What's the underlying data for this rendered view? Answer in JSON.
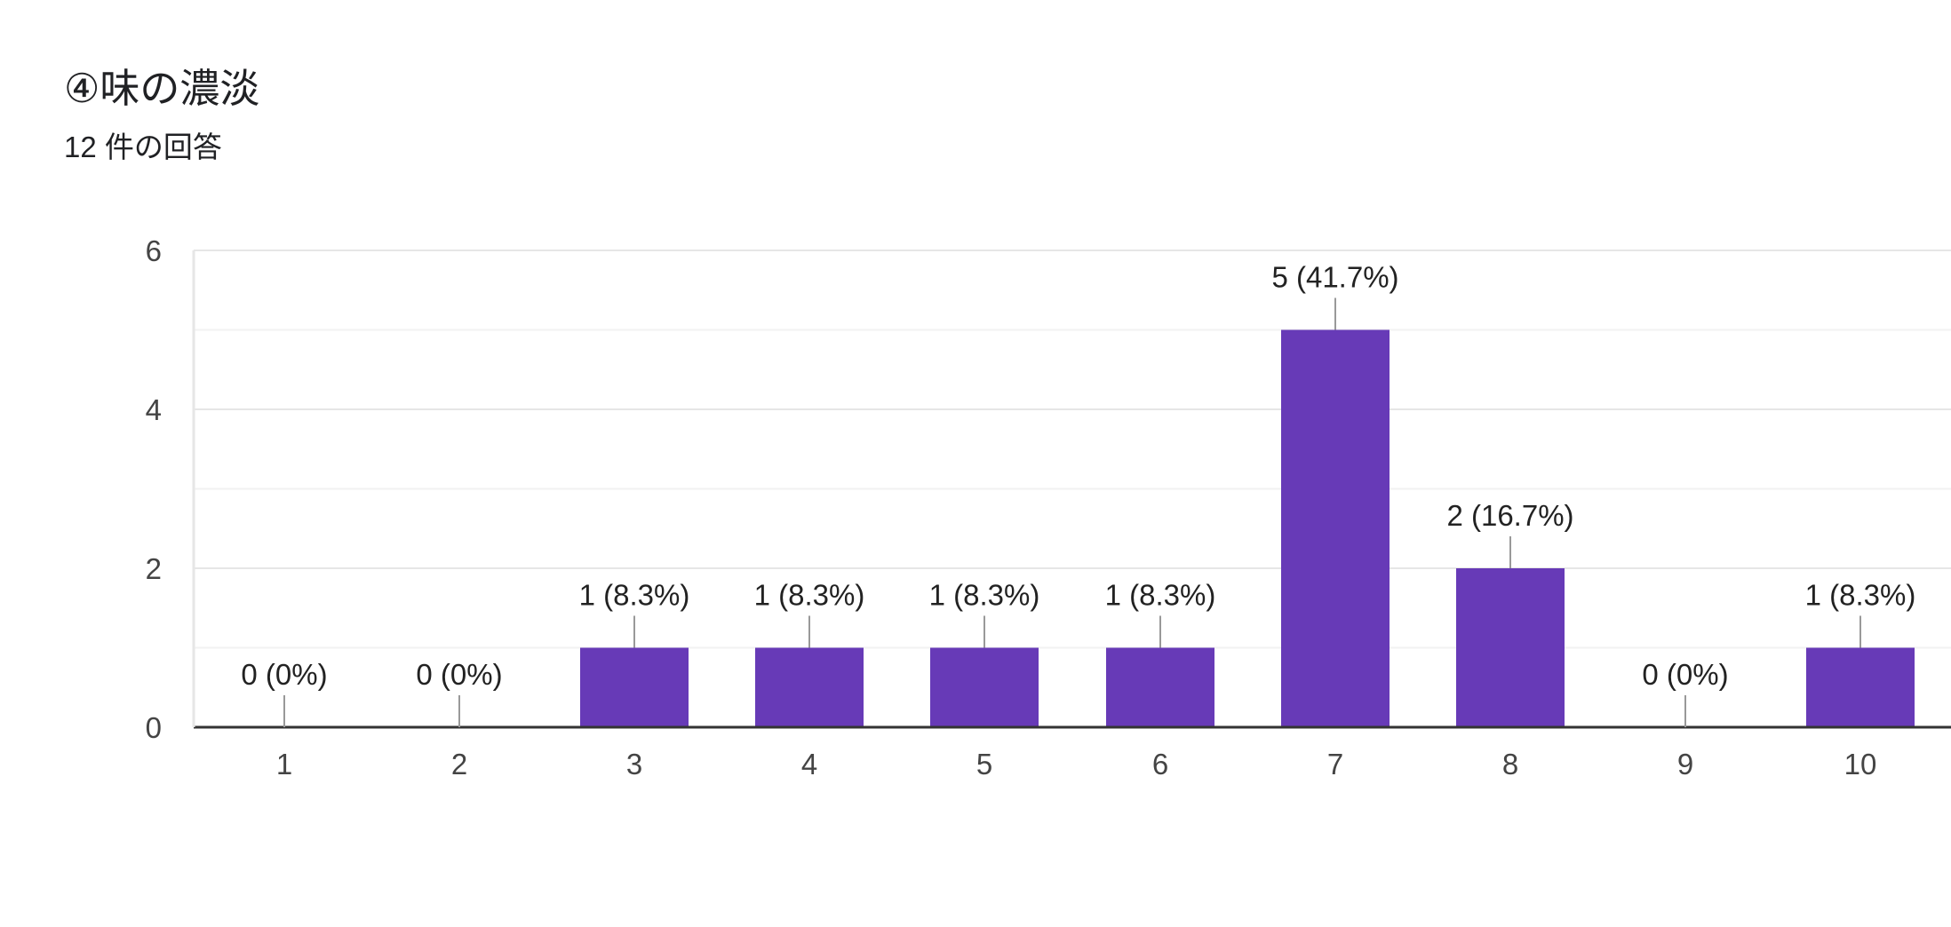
{
  "header": {
    "title": "④味の濃淡",
    "response_count": "12 件の回答"
  },
  "colors": {
    "bar": "#673ab7",
    "grid": "#ebebeb",
    "axis": "#333333",
    "leader": "#999999"
  },
  "chart_data": {
    "type": "bar",
    "title": "④味の濃淡",
    "subtitle": "12 件の回答",
    "categories": [
      "1",
      "2",
      "3",
      "4",
      "5",
      "6",
      "7",
      "8",
      "9",
      "10"
    ],
    "values": [
      0,
      0,
      1,
      1,
      1,
      1,
      5,
      2,
      0,
      1
    ],
    "data_labels": [
      "0 (0%)",
      "0 (0%)",
      "1 (8.3%)",
      "1 (8.3%)",
      "1 (8.3%)",
      "1 (8.3%)",
      "5 (41.7%)",
      "2 (16.7%)",
      "0 (0%)",
      "1 (8.3%)"
    ],
    "yticks": [
      0,
      2,
      4,
      6
    ],
    "ylim": [
      0,
      6
    ],
    "xlabel": "",
    "ylabel": "",
    "grid": true,
    "legend": "none"
  }
}
